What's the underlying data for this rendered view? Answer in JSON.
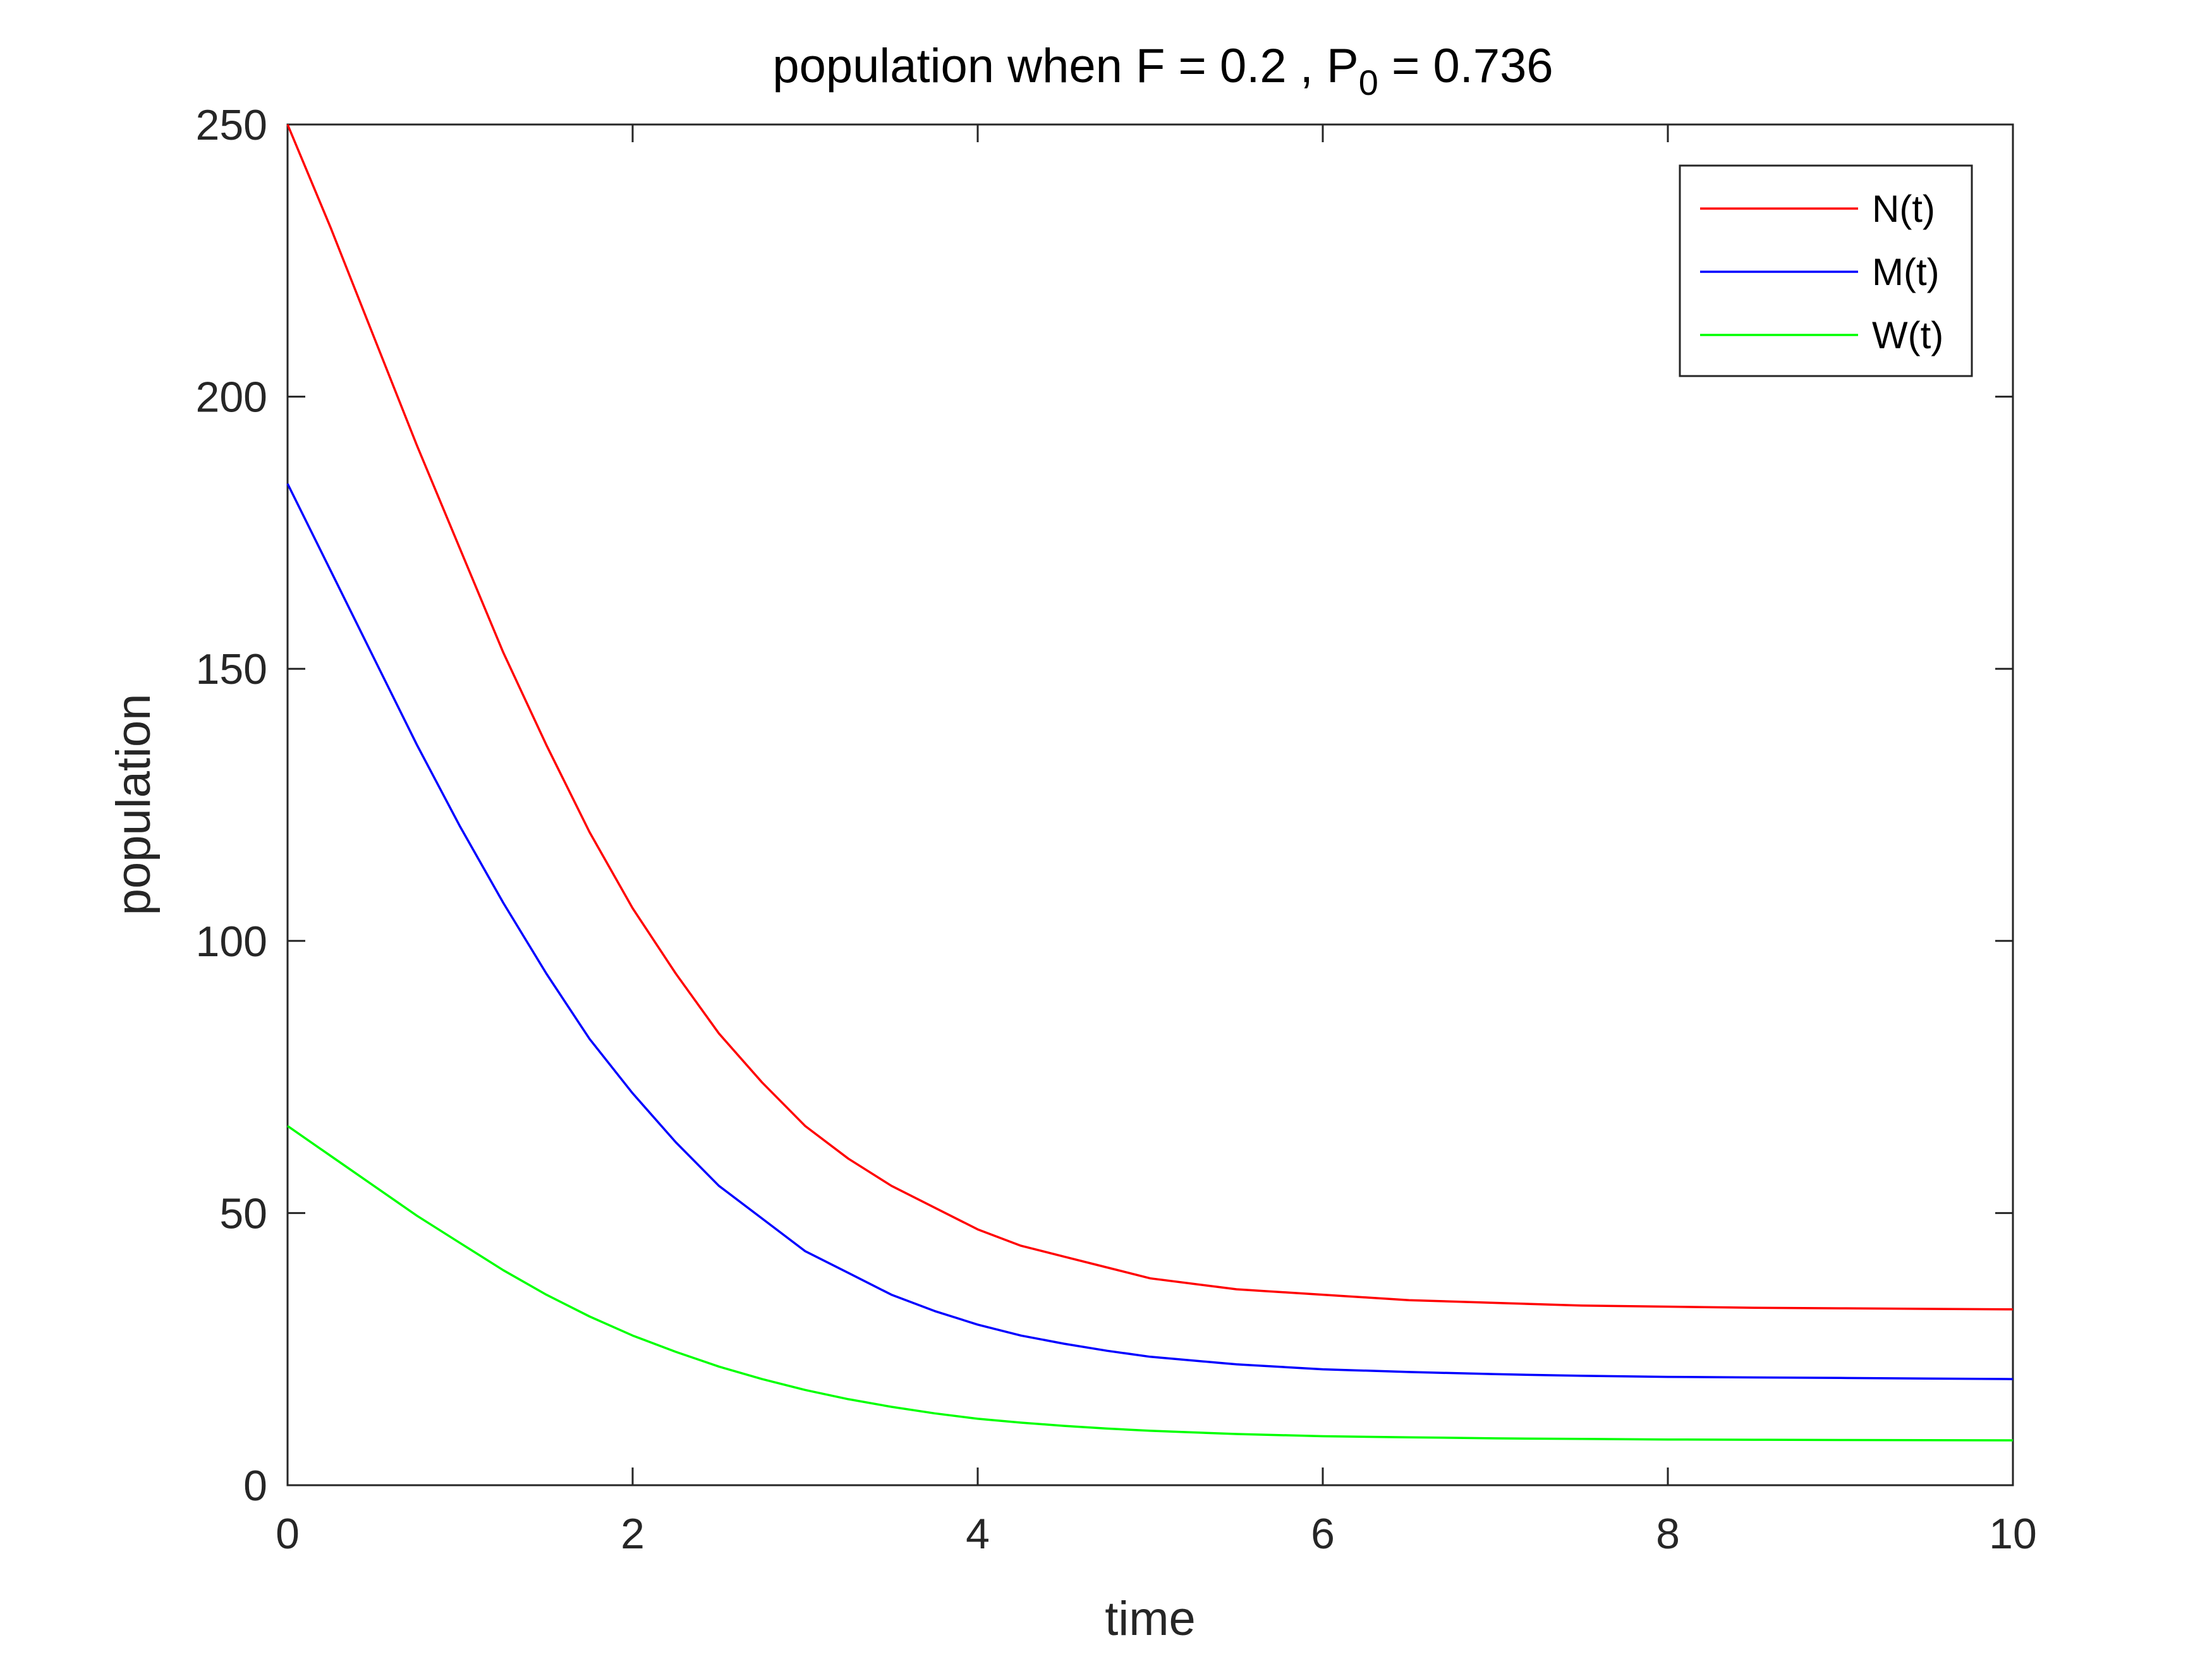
{
  "chart_data": {
    "type": "line",
    "title": {
      "main": "population when F = 0.2 , P",
      "subscript": "0",
      "suffix": " = 0.736"
    },
    "xlabel": "time",
    "ylabel": "population",
    "xlim": [
      0,
      10
    ],
    "ylim": [
      0,
      250
    ],
    "xticks": [
      0,
      2,
      4,
      6,
      8,
      10
    ],
    "yticks": [
      0,
      50,
      100,
      150,
      200,
      250
    ],
    "xtick_labels": [
      "0",
      "2",
      "4",
      "6",
      "8",
      "10"
    ],
    "ytick_labels": [
      "0",
      "50",
      "100",
      "150",
      "200",
      "250"
    ],
    "grid": false,
    "legend_position": "top-right",
    "x": [
      0,
      0.25,
      0.5,
      0.75,
      1,
      1.25,
      1.5,
      1.75,
      2,
      2.25,
      2.5,
      2.75,
      3,
      3.25,
      3.5,
      3.75,
      4,
      4.25,
      4.5,
      4.75,
      5,
      5.5,
      6,
      6.5,
      7,
      7.5,
      8,
      8.5,
      9,
      9.5,
      10
    ],
    "series": [
      {
        "name": "N(t)",
        "color": "#ff0000",
        "values": [
          250,
          231,
          211,
          191,
          172,
          153,
          136,
          120,
          106,
          94,
          83,
          74,
          66,
          60,
          55,
          51,
          47,
          44,
          42,
          40,
          38,
          36,
          35,
          34,
          33.5,
          33,
          32.8,
          32.6,
          32.5,
          32.4,
          32.3
        ]
      },
      {
        "name": "M(t)",
        "color": "#0000ff",
        "values": [
          184,
          168,
          152,
          136,
          121,
          107,
          94,
          82,
          72,
          63,
          55,
          49,
          43,
          39,
          35,
          32,
          29.5,
          27.5,
          26,
          24.7,
          23.6,
          22.2,
          21.3,
          20.8,
          20.4,
          20.1,
          19.9,
          19.8,
          19.7,
          19.6,
          19.5
        ]
      },
      {
        "name": "W(t)",
        "color": "#00ff00",
        "values": [
          66,
          60.5,
          55,
          49.5,
          44.5,
          39.5,
          35,
          31,
          27.5,
          24.5,
          21.8,
          19.5,
          17.5,
          15.8,
          14.4,
          13.2,
          12.2,
          11.5,
          10.9,
          10.4,
          10.0,
          9.4,
          9.0,
          8.8,
          8.6,
          8.5,
          8.4,
          8.35,
          8.3,
          8.27,
          8.25
        ]
      }
    ]
  }
}
